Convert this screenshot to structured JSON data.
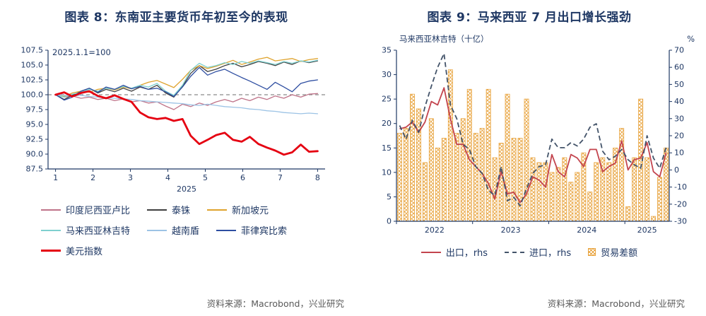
{
  "colors": {
    "navy": "#1F3864",
    "reference_gray": "#8A8A8A",
    "source_text": "#595959"
  },
  "panels": {
    "left": {
      "title": "图表 8：东南亚主要货币年初至今的表现",
      "source": "资料来源：Macrobond，兴业研究"
    },
    "right": {
      "title": "图表 9：马来西亚 7 月出口增长强劲",
      "source": "资料来源：Macrobond，兴业研究"
    }
  },
  "chart_data": [
    {
      "type": "line",
      "title": "东南亚主要货币年初至今的表现",
      "annotation": "2025.1.1=100",
      "x_label": "2025",
      "x_ticks": [
        1,
        2,
        3,
        4,
        5,
        6,
        7,
        8
      ],
      "ylim": [
        87.5,
        107.5
      ],
      "y_ticks": [
        87.5,
        90.0,
        92.5,
        95.0,
        97.5,
        100.0,
        102.5,
        105.0,
        107.5
      ],
      "reference_line": 100,
      "grid": false,
      "legend_position": "bottom",
      "x": [
        1.0,
        1.23,
        1.45,
        1.68,
        1.9,
        2.13,
        2.35,
        2.58,
        2.81,
        3.03,
        3.26,
        3.48,
        3.71,
        3.94,
        4.16,
        4.39,
        4.61,
        4.84,
        5.06,
        5.29,
        5.52,
        5.74,
        5.97,
        6.19,
        6.42,
        6.65,
        6.87,
        7.1,
        7.32,
        7.55,
        7.77,
        8.0
      ],
      "series": [
        {
          "name": "印度尼西亚卢比",
          "color": "#BF7389",
          "width": 1.3,
          "values": [
            100.0,
            99.6,
            99.8,
            99.4,
            99.6,
            99.2,
            99.4,
            99.0,
            99.3,
            98.8,
            99.0,
            98.6,
            98.8,
            98.1,
            97.5,
            98.4,
            98.0,
            98.6,
            98.2,
            98.8,
            99.2,
            98.8,
            99.4,
            99.0,
            99.6,
            99.2,
            99.8,
            99.4,
            100.0,
            99.6,
            100.1,
            100.2
          ]
        },
        {
          "name": "泰铢",
          "color": "#3F3F3F",
          "width": 1.3,
          "values": [
            100.0,
            99.2,
            99.9,
            100.6,
            101.1,
            100.3,
            100.9,
            100.5,
            101.1,
            100.6,
            101.3,
            100.9,
            101.6,
            100.3,
            99.6,
            101.4,
            103.6,
            104.9,
            103.9,
            104.3,
            104.9,
            105.3,
            104.7,
            105.1,
            105.6,
            105.3,
            104.9,
            105.5,
            105.1,
            105.7,
            105.4,
            105.7
          ]
        },
        {
          "name": "新加坡元",
          "color": "#DFA32D",
          "width": 1.3,
          "values": [
            100.0,
            99.7,
            100.3,
            100.6,
            100.4,
            100.9,
            101.1,
            100.8,
            101.3,
            101.0,
            101.6,
            102.1,
            102.4,
            101.8,
            101.2,
            102.6,
            104.1,
            104.9,
            104.4,
            104.8,
            105.3,
            105.8,
            105.1,
            105.5,
            106.0,
            106.3,
            105.7,
            105.9,
            106.1,
            105.6,
            105.9,
            106.1
          ]
        },
        {
          "name": "马来西亚林吉特",
          "color": "#7ED0CF",
          "width": 1.3,
          "values": [
            100.0,
            99.6,
            100.1,
            100.4,
            100.9,
            100.6,
            101.1,
            100.9,
            101.4,
            101.1,
            101.6,
            101.3,
            101.9,
            100.6,
            99.9,
            101.6,
            104.1,
            105.3,
            104.6,
            104.9,
            105.4,
            105.1,
            105.6,
            105.3,
            105.7,
            105.4,
            105.1,
            105.6,
            105.3,
            105.7,
            105.5,
            105.8
          ]
        },
        {
          "name": "越南盾",
          "color": "#9CC3E5",
          "width": 1.3,
          "values": [
            100.0,
            99.9,
            99.8,
            99.9,
            99.7,
            99.6,
            99.5,
            99.4,
            99.3,
            99.2,
            99.0,
            98.9,
            98.8,
            98.7,
            98.6,
            98.5,
            98.3,
            98.2,
            98.4,
            98.2,
            98.0,
            97.9,
            97.8,
            97.6,
            97.5,
            97.3,
            97.2,
            97.0,
            96.9,
            96.8,
            96.9,
            96.8
          ]
        },
        {
          "name": "菲律宾比索",
          "color": "#2E4EA1",
          "width": 1.3,
          "values": [
            100.0,
            99.1,
            99.6,
            100.6,
            101.1,
            100.4,
            101.3,
            100.9,
            101.6,
            101.0,
            101.4,
            100.9,
            101.1,
            100.5,
            99.7,
            101.3,
            103.1,
            104.6,
            103.3,
            103.9,
            104.3,
            103.6,
            102.9,
            102.3,
            101.6,
            100.9,
            102.1,
            101.3,
            100.5,
            101.9,
            102.3,
            102.5
          ]
        },
        {
          "name": "美元指数",
          "color": "#E50011",
          "width": 2.8,
          "values": [
            100.0,
            100.4,
            99.7,
            100.3,
            100.6,
            99.8,
            99.4,
            99.9,
            99.3,
            98.8,
            97.0,
            96.2,
            95.9,
            96.1,
            95.6,
            95.9,
            93.1,
            91.7,
            92.4,
            93.2,
            93.6,
            92.4,
            92.1,
            92.9,
            91.7,
            91.1,
            90.6,
            89.9,
            90.3,
            91.6,
            90.4,
            90.5
          ]
        }
      ]
    },
    {
      "type": "bar",
      "title": "马来西亚 7 月出口增长强劲",
      "left_axis_label": "马来西亚林吉特（十亿）",
      "right_axis_label": "%",
      "left_ylim": [
        0,
        35
      ],
      "left_ticks": [
        0,
        5,
        10,
        15,
        20,
        25,
        30,
        35
      ],
      "right_ylim": [
        -30,
        70
      ],
      "right_ticks": [
        -30,
        -20,
        -10,
        0,
        10,
        20,
        30,
        40,
        50,
        60,
        70
      ],
      "x_tick_labels": [
        "2022",
        "2023",
        "2024",
        "2025"
      ],
      "grid": false,
      "legend_position": "bottom",
      "months": [
        "2022-01",
        "2022-02",
        "2022-03",
        "2022-04",
        "2022-05",
        "2022-06",
        "2022-07",
        "2022-08",
        "2022-09",
        "2022-10",
        "2022-11",
        "2022-12",
        "2023-01",
        "2023-02",
        "2023-03",
        "2023-04",
        "2023-05",
        "2023-06",
        "2023-07",
        "2023-08",
        "2023-09",
        "2023-10",
        "2023-11",
        "2023-12",
        "2024-01",
        "2024-02",
        "2024-03",
        "2024-04",
        "2024-05",
        "2024-06",
        "2024-07",
        "2024-08",
        "2024-09",
        "2024-10",
        "2024-11",
        "2024-12",
        "2025-01",
        "2025-02",
        "2025-03",
        "2025-04",
        "2025-05",
        "2025-06",
        "2025-07"
      ],
      "bars": {
        "name": "贸易差额",
        "axis": "left",
        "color": "#E8A33D",
        "values": [
          18,
          19,
          26,
          23,
          12,
          21,
          15,
          17,
          31,
          18,
          21,
          27,
          18,
          19,
          27,
          13,
          16,
          26,
          17,
          17,
          25,
          13,
          12,
          12,
          10,
          11,
          13,
          8,
          10,
          14,
          6,
          12,
          13,
          12,
          15,
          19,
          3,
          13,
          25,
          13,
          1,
          9,
          15
        ]
      },
      "lines": [
        {
          "name": "出口，rhs",
          "axis": "right",
          "color": "#C3444E",
          "dash": "",
          "width": 1.8,
          "values": [
            24,
            25,
            28,
            22,
            28,
            40,
            38,
            48,
            30,
            15,
            15,
            6,
            2,
            -2,
            -8,
            -17,
            -1,
            -14,
            -13,
            -19,
            -14,
            -4,
            -6,
            -10,
            9,
            -1,
            -4,
            9,
            7,
            2,
            12,
            12,
            -1,
            2,
            4,
            17,
            0,
            6,
            7,
            16,
            -1,
            -4,
            10
          ]
        },
        {
          "name": "进口，rhs",
          "axis": "right",
          "color": "#44546A",
          "dash": "7 4",
          "width": 1.8,
          "values": [
            26,
            18,
            29,
            22,
            37,
            49,
            60,
            68,
            38,
            30,
            15,
            12,
            2,
            -2,
            -12,
            -15,
            2,
            -18,
            -16,
            -21,
            -11,
            -2,
            2,
            3,
            18,
            13,
            13,
            16,
            14,
            18,
            25,
            27,
            11,
            6,
            8,
            12,
            6,
            3,
            1,
            20,
            7,
            1,
            13
          ]
        }
      ]
    }
  ]
}
